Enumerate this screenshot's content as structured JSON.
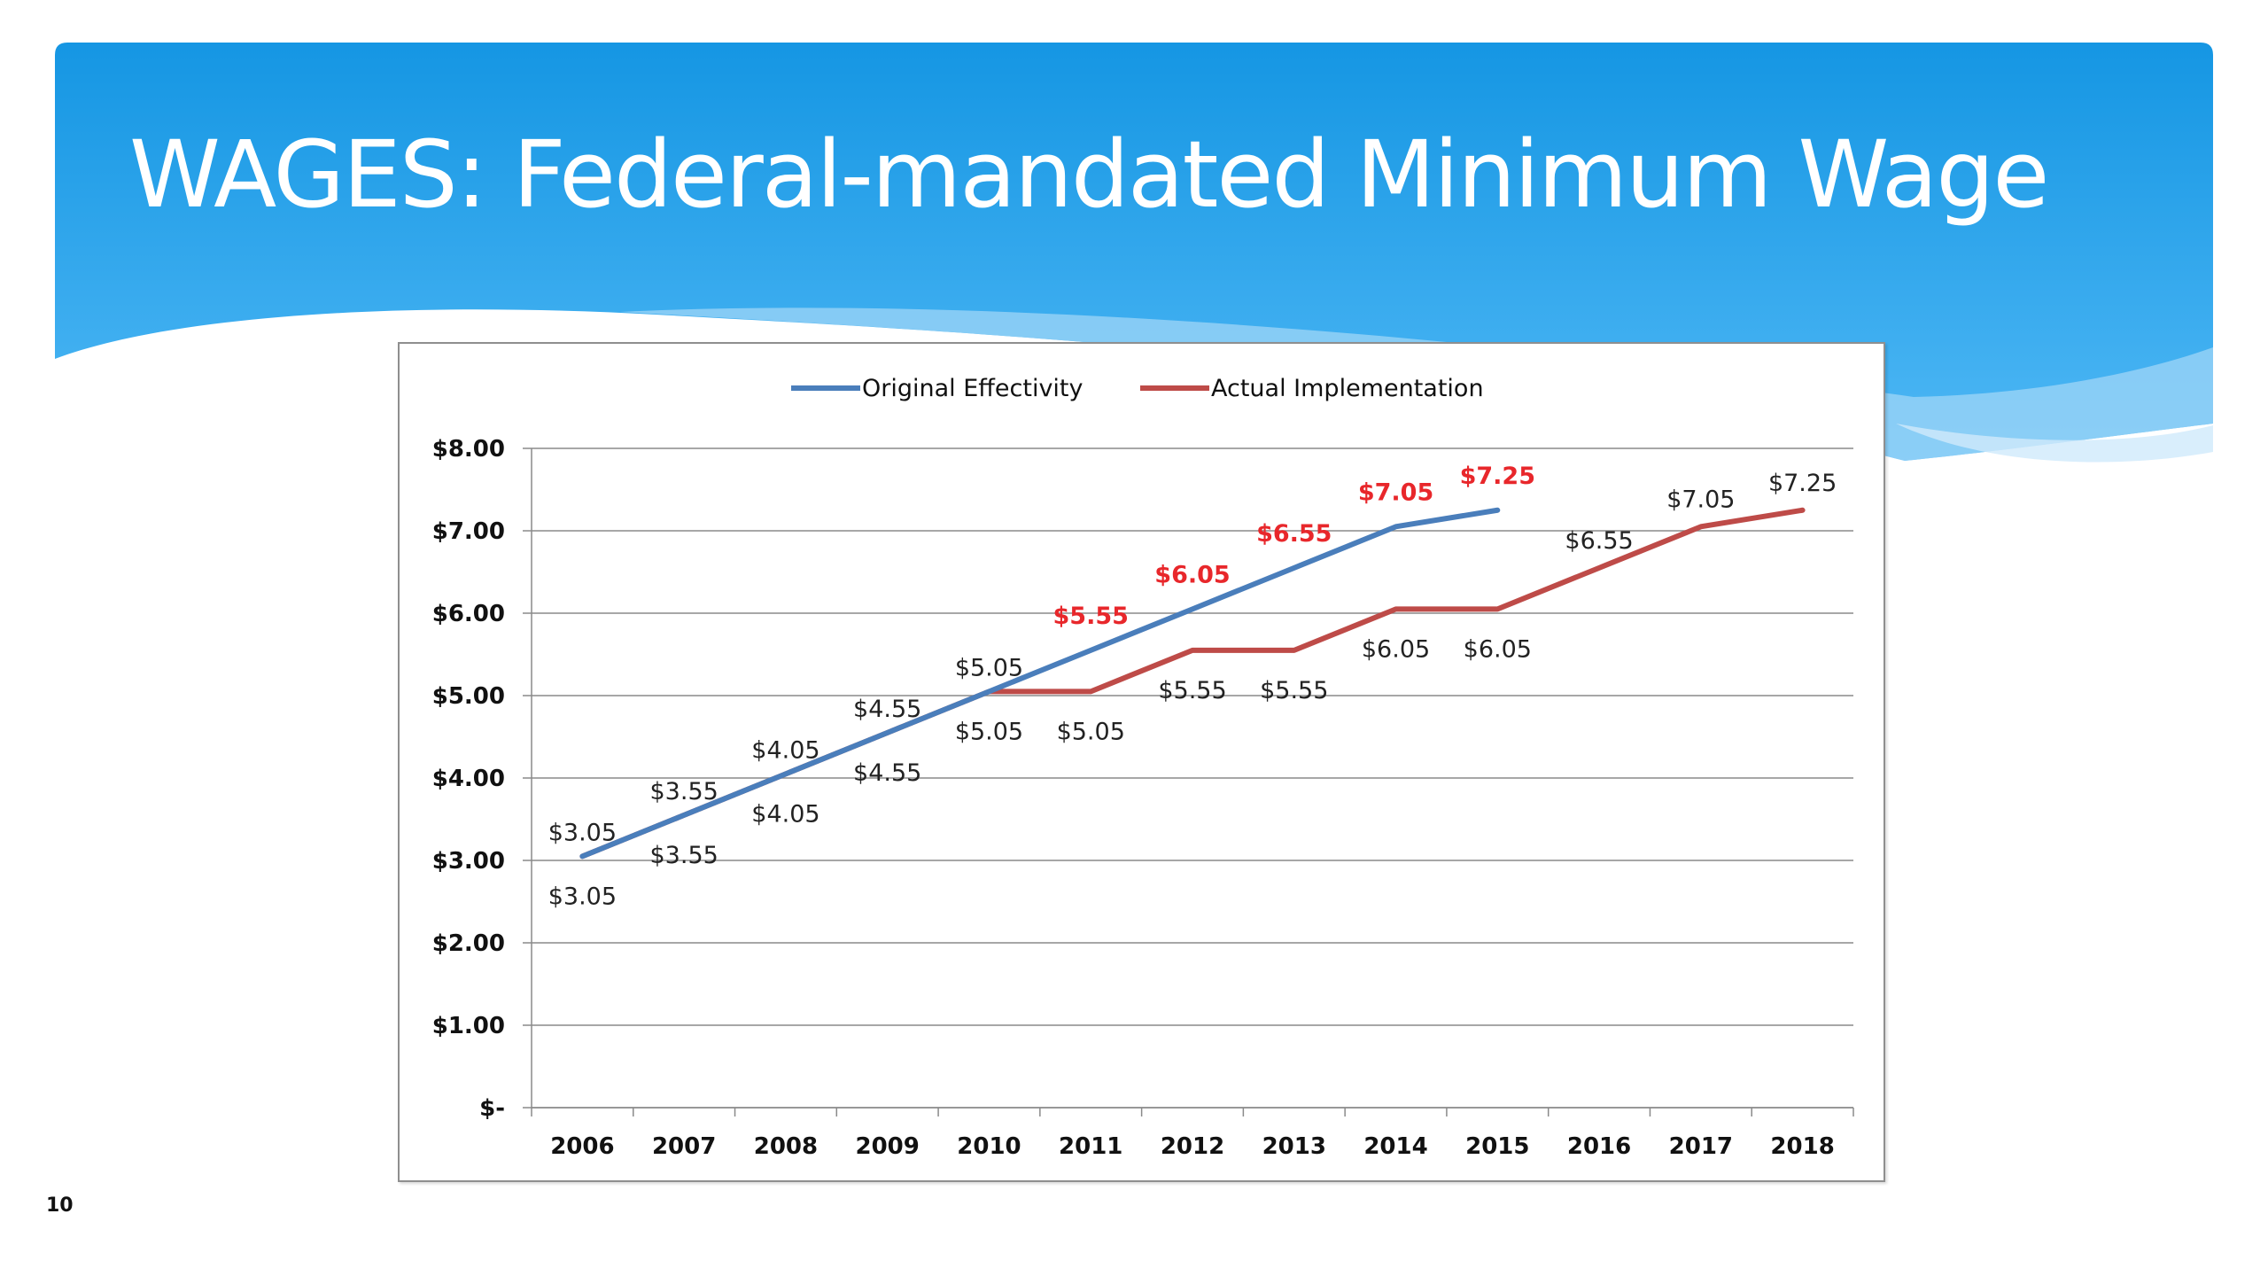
{
  "slide": {
    "title": "WAGES: Federal-mandated Minimum Wage",
    "number": "10"
  },
  "colors": {
    "header_top": "#1596e3",
    "header_bottom": "#4fb8f5",
    "original_series": "#4a7ebb",
    "actual_series": "#be4b48",
    "highlight_label": "#e8272b"
  },
  "chart_data": {
    "type": "line",
    "title": "",
    "xlabel": "",
    "ylabel": "",
    "categories": [
      "2006",
      "2007",
      "2008",
      "2009",
      "2010",
      "2011",
      "2012",
      "2013",
      "2014",
      "2015",
      "2016",
      "2017",
      "2018"
    ],
    "ylim": [
      0,
      8
    ],
    "y_ticks": [
      {
        "value": 8,
        "label": "$8.00"
      },
      {
        "value": 7,
        "label": "$7.00"
      },
      {
        "value": 6,
        "label": "$6.00"
      },
      {
        "value": 5,
        "label": "$5.00"
      },
      {
        "value": 4,
        "label": "$4.00"
      },
      {
        "value": 3,
        "label": "$3.00"
      },
      {
        "value": 2,
        "label": "$2.00"
      },
      {
        "value": 1,
        "label": "$1.00"
      },
      {
        "value": 0,
        "label": "$-"
      }
    ],
    "grid": true,
    "legend_position": "top-center",
    "series": [
      {
        "name": "Original Effectivity",
        "color": "#4a7ebb",
        "values": [
          3.05,
          3.55,
          4.05,
          4.55,
          5.05,
          5.55,
          6.05,
          6.55,
          7.05,
          7.25,
          null,
          null,
          null
        ],
        "labels": [
          "$3.05",
          "$3.55",
          "$4.05",
          "$4.55",
          "$5.05",
          "$5.55",
          "$6.05",
          "$6.55",
          "$7.05",
          "$7.25",
          null,
          null,
          null
        ]
      },
      {
        "name": "Actual Implementation",
        "color": "#be4b48",
        "values": [
          3.05,
          3.55,
          4.05,
          4.55,
          5.05,
          5.05,
          5.55,
          5.55,
          6.05,
          6.05,
          6.55,
          7.05,
          7.25
        ],
        "labels": [
          "$3.05",
          "$3.55",
          "$4.05",
          "$4.55",
          "$5.05",
          "$5.05",
          "$5.55",
          "$5.55",
          "$6.05",
          "$6.05",
          "$6.55",
          "$7.05",
          "$7.25"
        ]
      }
    ]
  }
}
